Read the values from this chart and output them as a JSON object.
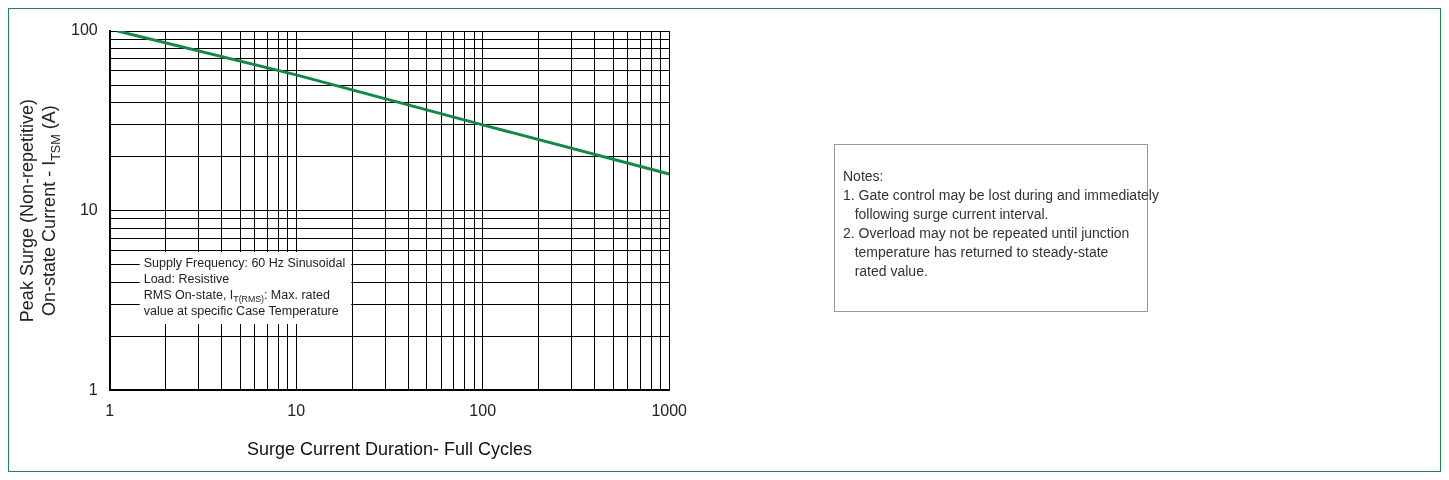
{
  "chart_data": {
    "type": "line",
    "xlabel": "Surge Current Duration- Full Cycles",
    "ylabel": "Peak Surge (Non-repetitive)\nOn-state Current - I$_{TSM}$ (A)",
    "x": [
      1.1,
      10,
      100,
      1000
    ],
    "series": [
      {
        "color": "#12884a",
        "values": [
          100,
          57,
          30,
          16
        ]
      }
    ],
    "log": "xy",
    "grid": true,
    "legend": false,
    "marker": "none",
    "line_style": "solid",
    "xlim": [
      1,
      1000
    ],
    "xticks": [
      1,
      {
        "value": 2,
        "label": null
      },
      {
        "value": 3,
        "label": null
      },
      {
        "value": 4,
        "label": null
      },
      {
        "value": 5,
        "label": null
      },
      {
        "value": 6,
        "label": null
      },
      {
        "value": 7,
        "label": null
      },
      {
        "value": 8,
        "label": null
      },
      {
        "value": 9,
        "label": null
      },
      10,
      {
        "value": 20,
        "label": null
      },
      {
        "value": 30,
        "label": null
      },
      {
        "value": 40,
        "label": null
      },
      {
        "value": 50,
        "label": null
      },
      {
        "value": 60,
        "label": null
      },
      {
        "value": 70,
        "label": null
      },
      {
        "value": 80,
        "label": null
      },
      {
        "value": 90,
        "label": null
      },
      100,
      {
        "value": 200,
        "label": null
      },
      {
        "value": 300,
        "label": null
      },
      {
        "value": 400,
        "label": null
      },
      {
        "value": 500,
        "label": null
      },
      {
        "value": 600,
        "label": null
      },
      {
        "value": 700,
        "label": null
      },
      {
        "value": 800,
        "label": null
      },
      {
        "value": 900,
        "label": null
      },
      1000
    ],
    "ylim": [
      1,
      100
    ],
    "yticks": [
      1,
      {
        "value": 2,
        "label": null
      },
      {
        "value": 3,
        "label": null
      },
      {
        "value": 4,
        "label": null
      },
      {
        "value": 5,
        "label": null
      },
      {
        "value": 6,
        "label": null
      },
      {
        "value": 7,
        "label": null
      },
      {
        "value": 8,
        "label": null
      },
      {
        "value": 9,
        "label": null
      },
      10,
      {
        "value": 20,
        "label": null
      },
      {
        "value": 30,
        "label": null
      },
      {
        "value": 40,
        "label": null
      },
      {
        "value": 50,
        "label": null
      },
      {
        "value": 60,
        "label": null
      },
      {
        "value": 70,
        "label": null
      },
      {
        "value": 80,
        "label": null
      },
      {
        "value": 90,
        "label": null
      },
      100
    ],
    "annotations": [
      "Supply Frequency: 60 Hz Sinusoidal\nLoad: Resistive\nRMS On-state, I$_{T(RMS)}$: Max. rated\nvalue at specific Case Temperature",
      "Notes:\n1. Gate control may be lost during and immediately\n   following surge current interval.\n2. Overload may not be repeated until junction\n   temperature has returned to steady-state\n   rated value."
    ]
  }
}
